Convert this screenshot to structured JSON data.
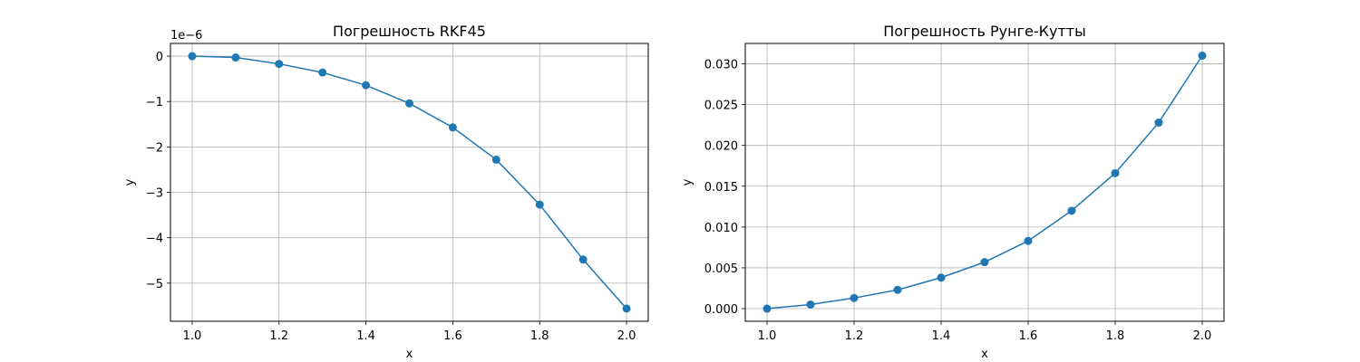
{
  "chart_data": [
    {
      "type": "line",
      "title": "Погрешность RKF45",
      "xlabel": "x",
      "ylabel": "y",
      "y_offset_label": "1e−6",
      "xlim": [
        0.95,
        2.05
      ],
      "ylim": [
        -5.84,
        0.28
      ],
      "xticks": [
        1.0,
        1.2,
        1.4,
        1.6,
        1.8,
        2.0
      ],
      "xtick_labels": [
        "1.0",
        "1.2",
        "1.4",
        "1.6",
        "1.8",
        "2.0"
      ],
      "yticks": [
        0,
        -1,
        -2,
        -3,
        -4,
        -5
      ],
      "ytick_labels": [
        "0",
        "−1",
        "−2",
        "−3",
        "−4",
        "−5"
      ],
      "grid": true,
      "marker": "circle",
      "color": "#1f77b4",
      "x": [
        1.0,
        1.1,
        1.2,
        1.3,
        1.4,
        1.5,
        1.6,
        1.7,
        1.8,
        1.9,
        2.0
      ],
      "y": [
        0.0,
        -0.03,
        -0.17,
        -0.36,
        -0.64,
        -1.04,
        -1.57,
        -2.28,
        -3.27,
        -4.48,
        -5.56
      ]
    },
    {
      "type": "line",
      "title": "Погрешность Рунге-Кутты",
      "xlabel": "x",
      "ylabel": "y",
      "y_offset_label": "",
      "xlim": [
        0.95,
        2.05
      ],
      "ylim": [
        -0.00155,
        0.0325
      ],
      "xticks": [
        1.0,
        1.2,
        1.4,
        1.6,
        1.8,
        2.0
      ],
      "xtick_labels": [
        "1.0",
        "1.2",
        "1.4",
        "1.6",
        "1.8",
        "2.0"
      ],
      "yticks": [
        0.0,
        0.005,
        0.01,
        0.015,
        0.02,
        0.025,
        0.03
      ],
      "ytick_labels": [
        "0.000",
        "0.005",
        "0.010",
        "0.015",
        "0.020",
        "0.025",
        "0.030"
      ],
      "grid": true,
      "marker": "circle",
      "color": "#1f77b4",
      "x": [
        1.0,
        1.1,
        1.2,
        1.3,
        1.4,
        1.5,
        1.6,
        1.7,
        1.8,
        1.9,
        2.0
      ],
      "y": [
        0.0,
        0.0005,
        0.0013,
        0.0023,
        0.0038,
        0.0057,
        0.0083,
        0.012,
        0.0166,
        0.0228,
        0.031
      ]
    }
  ]
}
